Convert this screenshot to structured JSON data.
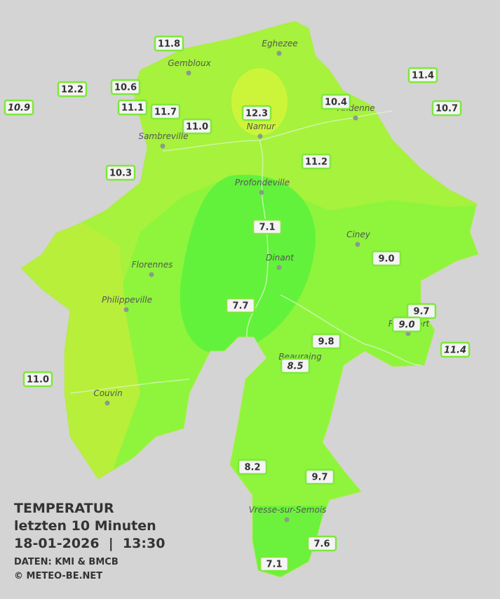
{
  "title": "TEMPERATUR",
  "subtitle": "letzten 10 Minuten",
  "datetime": "18-01-2026  |  13:30",
  "source": "DATEN: KMI & BMCB",
  "copyright": "© METEO-BE.NET",
  "cities": [
    "Eghezee",
    "Gembloux",
    "Andenne",
    "Namur",
    "Sambreville",
    "Profondeville",
    "Ciney",
    "Dinant",
    "Florennes",
    "Philippeville",
    "Beauraing",
    "Rochefort",
    "Couvin",
    "Vresse-sur-Semois"
  ],
  "stations": [
    {
      "value": "11.8"
    },
    {
      "value": "12.2"
    },
    {
      "value": "10.9",
      "italic": true
    },
    {
      "value": "10.6"
    },
    {
      "value": "11.1"
    },
    {
      "value": "11.7"
    },
    {
      "value": "11.0"
    },
    {
      "value": "12.3"
    },
    {
      "value": "10.4"
    },
    {
      "value": "11.4"
    },
    {
      "value": "10.7"
    },
    {
      "value": "11.2"
    },
    {
      "value": "10.3"
    },
    {
      "value": "7.1"
    },
    {
      "value": "9.0"
    },
    {
      "value": "7.7"
    },
    {
      "value": "9.7"
    },
    {
      "value": "9.0",
      "italic": true
    },
    {
      "value": "9.8"
    },
    {
      "value": "8.5",
      "italic": true
    },
    {
      "value": "11.4",
      "italic": true
    },
    {
      "value": "11.0"
    },
    {
      "value": "8.2"
    },
    {
      "value": "9.7"
    },
    {
      "value": "7.6"
    },
    {
      "value": "7.1"
    }
  ]
}
